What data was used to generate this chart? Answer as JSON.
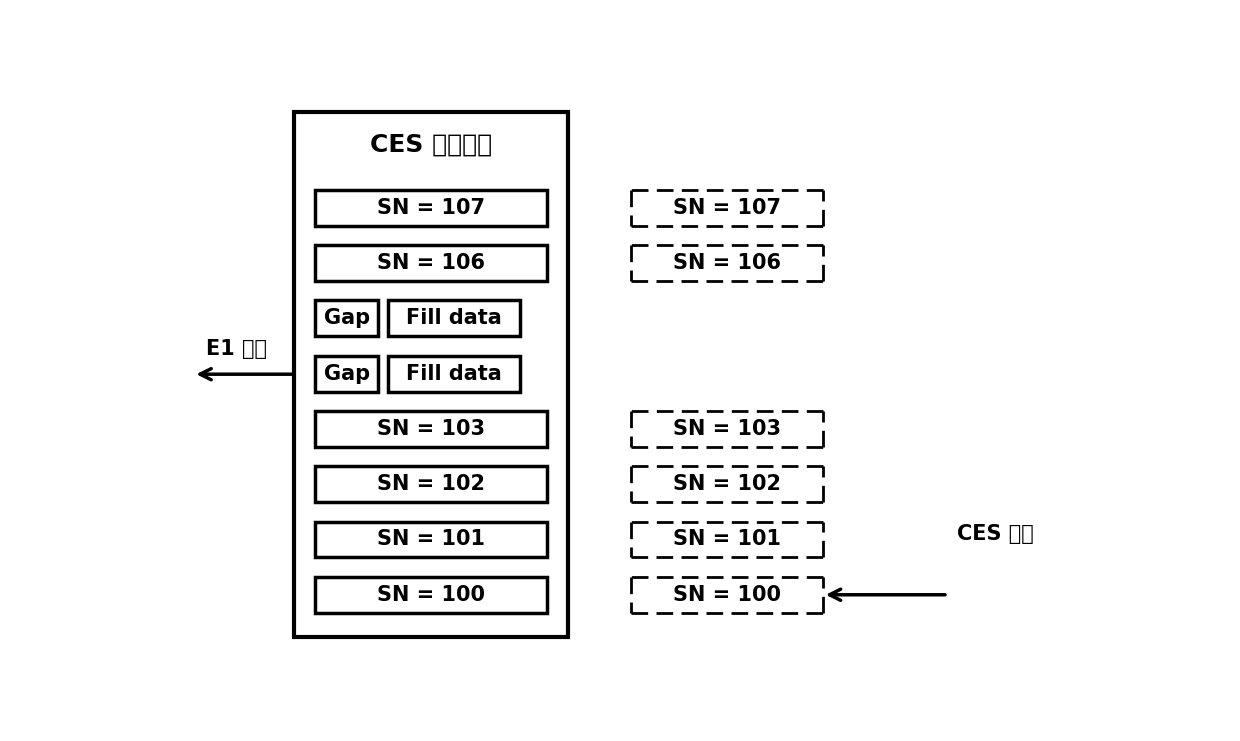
{
  "title": "CES 报文缓存",
  "left_label": "E1 电路",
  "right_label": "CES 报文",
  "rows": [
    {
      "type": "sn",
      "label": "SN = 107",
      "has_right": true,
      "arrow": false
    },
    {
      "type": "sn",
      "label": "SN = 106",
      "has_right": true,
      "arrow": false
    },
    {
      "type": "gap",
      "labels": [
        "Gap",
        "Fill data"
      ],
      "has_right": false,
      "arrow": false
    },
    {
      "type": "gap",
      "labels": [
        "Gap",
        "Fill data"
      ],
      "has_right": false,
      "arrow": false
    },
    {
      "type": "sn",
      "label": "SN = 103",
      "has_right": true,
      "arrow": false
    },
    {
      "type": "sn",
      "label": "SN = 102",
      "has_right": true,
      "arrow": false
    },
    {
      "type": "sn",
      "label": "SN = 101",
      "has_right": true,
      "arrow": false
    },
    {
      "type": "sn",
      "label": "SN = 100",
      "has_right": true,
      "arrow": true
    }
  ],
  "right_sn_labels": [
    "SN = 107",
    "SN = 106",
    null,
    null,
    "SN = 103",
    "SN = 102",
    "SN = 101",
    "SN = 100"
  ],
  "bg_color": "#ffffff",
  "font_size_title": 18,
  "font_size_label": 15,
  "font_size_side": 15
}
